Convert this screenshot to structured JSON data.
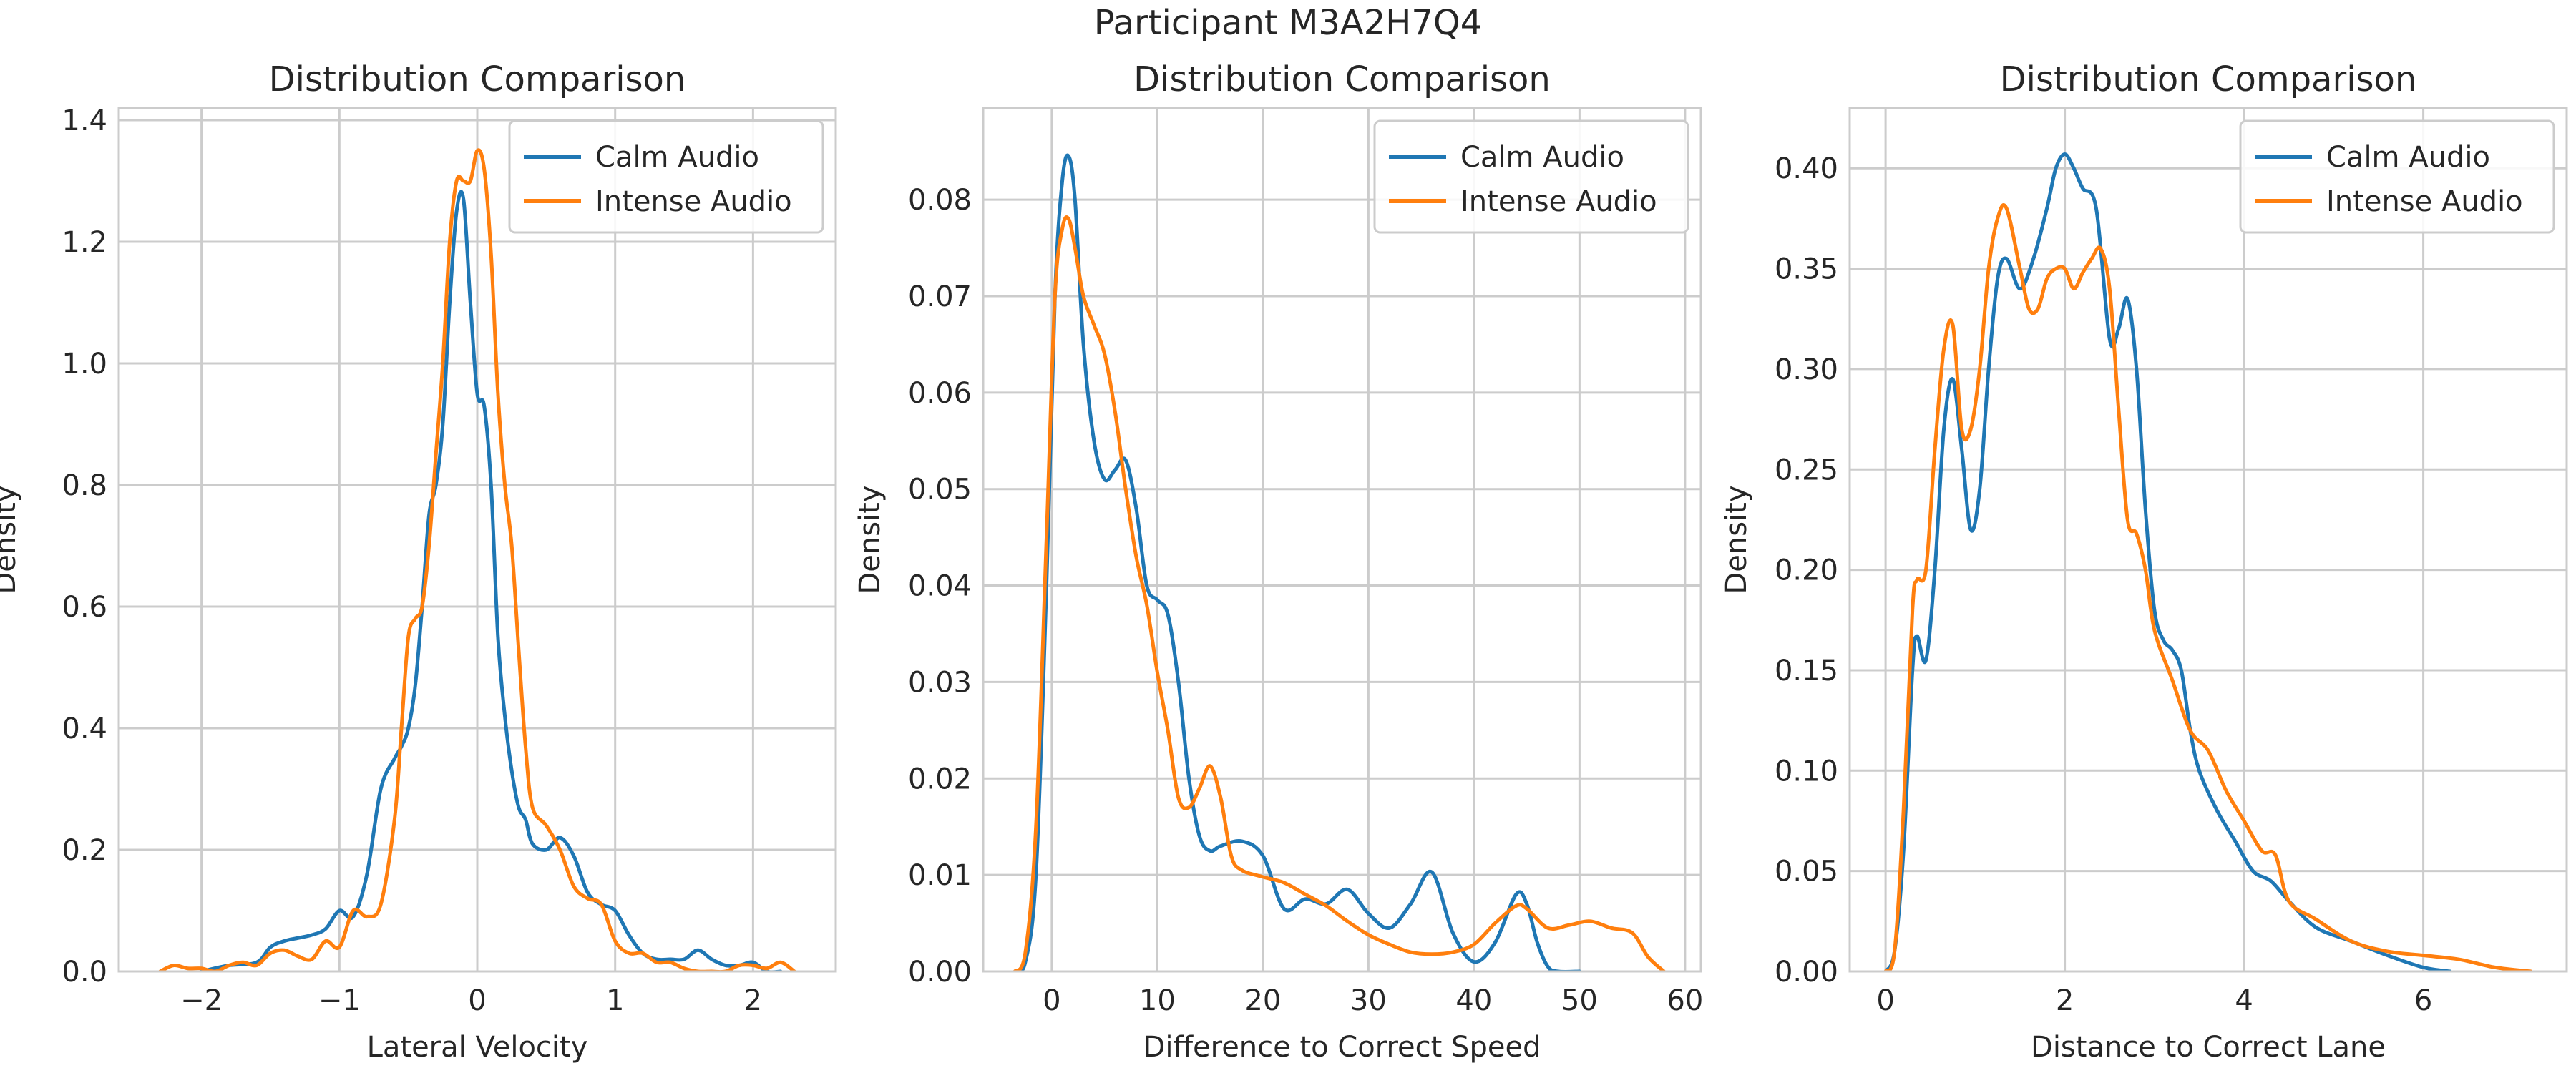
{
  "figure": {
    "suptitle": "Participant M3A2H7Q4"
  },
  "colors": {
    "calm": "#1f77b4",
    "intense": "#ff7f0e"
  },
  "chart_data": [
    {
      "type": "line",
      "title": "Distribution Comparison",
      "xlabel": "Lateral Velocity",
      "ylabel": "Density",
      "xlim": [
        -2.6,
        2.6
      ],
      "ylim": [
        0,
        1.42
      ],
      "xticks": [
        -2,
        -1,
        0,
        1,
        2
      ],
      "xtick_labels": [
        "−2",
        "−1",
        "0",
        "1",
        "2"
      ],
      "yticks": [
        0,
        0.2,
        0.4,
        0.6,
        0.8,
        1.0,
        1.2,
        1.4
      ],
      "ytick_labels": [
        "0.0",
        "0.2",
        "0.4",
        "0.6",
        "0.8",
        "1.0",
        "1.2",
        "1.4"
      ],
      "grid": true,
      "legend": "upper right",
      "series": [
        {
          "name": "Calm Audio",
          "color": "#1f77b4",
          "x": [
            -2.0,
            -1.8,
            -1.6,
            -1.5,
            -1.4,
            -1.3,
            -1.2,
            -1.1,
            -1.0,
            -0.9,
            -0.8,
            -0.7,
            -0.6,
            -0.55,
            -0.5,
            -0.45,
            -0.4,
            -0.35,
            -0.3,
            -0.25,
            -0.2,
            -0.15,
            -0.1,
            -0.05,
            0.0,
            0.05,
            0.1,
            0.15,
            0.2,
            0.25,
            0.3,
            0.35,
            0.4,
            0.5,
            0.6,
            0.7,
            0.8,
            0.9,
            1.0,
            1.1,
            1.2,
            1.3,
            1.4,
            1.5,
            1.6,
            1.7,
            1.8,
            1.9,
            2.0,
            2.1,
            2.2
          ],
          "y": [
            0.0,
            0.01,
            0.015,
            0.04,
            0.05,
            0.055,
            0.06,
            0.07,
            0.1,
            0.09,
            0.16,
            0.3,
            0.35,
            0.37,
            0.4,
            0.47,
            0.6,
            0.75,
            0.8,
            0.9,
            1.1,
            1.25,
            1.27,
            1.1,
            0.95,
            0.93,
            0.8,
            0.55,
            0.42,
            0.33,
            0.27,
            0.25,
            0.21,
            0.2,
            0.22,
            0.19,
            0.13,
            0.11,
            0.1,
            0.06,
            0.03,
            0.02,
            0.02,
            0.02,
            0.035,
            0.02,
            0.01,
            0.01,
            0.015,
            0.0,
            0.0
          ]
        },
        {
          "name": "Intense Audio",
          "color": "#ff7f0e",
          "x": [
            -2.3,
            -2.2,
            -2.1,
            -2.0,
            -1.9,
            -1.8,
            -1.7,
            -1.6,
            -1.5,
            -1.4,
            -1.3,
            -1.2,
            -1.1,
            -1.0,
            -0.9,
            -0.8,
            -0.7,
            -0.6,
            -0.55,
            -0.5,
            -0.45,
            -0.4,
            -0.35,
            -0.3,
            -0.25,
            -0.2,
            -0.15,
            -0.1,
            -0.05,
            0.0,
            0.05,
            0.1,
            0.15,
            0.2,
            0.25,
            0.3,
            0.35,
            0.4,
            0.5,
            0.6,
            0.7,
            0.8,
            0.9,
            1.0,
            1.1,
            1.2,
            1.3,
            1.4,
            1.5,
            1.6,
            1.7,
            1.8,
            1.9,
            2.0,
            2.1,
            2.2,
            2.3
          ],
          "y": [
            0.0,
            0.01,
            0.005,
            0.005,
            0.0,
            0.01,
            0.015,
            0.01,
            0.03,
            0.035,
            0.025,
            0.02,
            0.05,
            0.04,
            0.1,
            0.09,
            0.11,
            0.25,
            0.4,
            0.55,
            0.58,
            0.6,
            0.7,
            0.85,
            1.0,
            1.2,
            1.3,
            1.3,
            1.3,
            1.35,
            1.32,
            1.18,
            0.95,
            0.8,
            0.7,
            0.53,
            0.37,
            0.27,
            0.24,
            0.2,
            0.14,
            0.12,
            0.11,
            0.05,
            0.03,
            0.03,
            0.015,
            0.015,
            0.005,
            0.0,
            0.0,
            0.0,
            0.01,
            0.01,
            0.005,
            0.015,
            0.0
          ]
        }
      ]
    },
    {
      "type": "line",
      "title": "Distribution Comparison",
      "xlabel": "Difference to Correct Speed",
      "ylabel": "Density",
      "xlim": [
        -6.5,
        61.5
      ],
      "ylim": [
        0,
        0.0895
      ],
      "xticks": [
        0,
        10,
        20,
        30,
        40,
        50,
        60
      ],
      "xtick_labels": [
        "0",
        "10",
        "20",
        "30",
        "40",
        "50",
        "60"
      ],
      "yticks": [
        0,
        0.01,
        0.02,
        0.03,
        0.04,
        0.05,
        0.06,
        0.07,
        0.08
      ],
      "ytick_labels": [
        "0.00",
        "0.01",
        "0.02",
        "0.03",
        "0.04",
        "0.05",
        "0.06",
        "0.07",
        "0.08"
      ],
      "grid": true,
      "legend": "upper right",
      "series": [
        {
          "name": "Calm Audio",
          "color": "#1f77b4",
          "x": [
            -3.5,
            -2.5,
            -1.5,
            -0.5,
            0.3,
            1.0,
            1.6,
            2.2,
            3.0,
            4.0,
            5.0,
            6.0,
            7.0,
            8.0,
            9.0,
            10.0,
            11.0,
            12.0,
            13.0,
            14.0,
            15.0,
            16.0,
            18.0,
            20.0,
            22.0,
            24.0,
            26.0,
            28.0,
            30.0,
            32.0,
            34.0,
            36.0,
            38.0,
            40.0,
            42.0,
            44.0,
            45.0,
            46.0,
            47.0,
            48.0,
            50.0
          ],
          "y": [
            0.0,
            0.001,
            0.01,
            0.04,
            0.07,
            0.082,
            0.0845,
            0.08,
            0.065,
            0.055,
            0.051,
            0.052,
            0.053,
            0.048,
            0.04,
            0.0385,
            0.037,
            0.03,
            0.02,
            0.014,
            0.0125,
            0.013,
            0.0135,
            0.012,
            0.0065,
            0.0075,
            0.007,
            0.0085,
            0.006,
            0.0045,
            0.007,
            0.0103,
            0.004,
            0.001,
            0.003,
            0.008,
            0.007,
            0.003,
            0.0005,
            0.0,
            0.0
          ]
        },
        {
          "name": "Intense Audio",
          "color": "#ff7f0e",
          "x": [
            -3.5,
            -2.5,
            -1.5,
            -0.5,
            0.3,
            1.0,
            1.6,
            2.2,
            3.0,
            4.0,
            5.0,
            6.0,
            7.0,
            8.0,
            9.0,
            10.0,
            11.0,
            12.0,
            13.0,
            14.0,
            15.0,
            16.0,
            17.0,
            18.0,
            20.0,
            22.0,
            24.0,
            26.0,
            28.0,
            30.0,
            32.0,
            34.0,
            36.0,
            38.0,
            40.0,
            42.0,
            44.0,
            45.0,
            47.0,
            49.0,
            51.0,
            53.0,
            55.0,
            56.5,
            58.0
          ],
          "y": [
            0.0,
            0.002,
            0.015,
            0.045,
            0.07,
            0.077,
            0.078,
            0.075,
            0.07,
            0.067,
            0.064,
            0.058,
            0.05,
            0.043,
            0.038,
            0.031,
            0.025,
            0.018,
            0.017,
            0.019,
            0.0213,
            0.018,
            0.012,
            0.0105,
            0.0098,
            0.0092,
            0.008,
            0.0068,
            0.0052,
            0.0038,
            0.0028,
            0.002,
            0.0018,
            0.002,
            0.0028,
            0.005,
            0.0068,
            0.0065,
            0.0045,
            0.0048,
            0.0052,
            0.0045,
            0.004,
            0.0015,
            0.0
          ]
        }
      ]
    },
    {
      "type": "line",
      "title": "Distribution Comparison",
      "xlabel": "Distance to Correct Lane",
      "ylabel": "Density",
      "xlim": [
        -0.4,
        7.6
      ],
      "ylim": [
        0,
        0.43
      ],
      "xticks": [
        0,
        2,
        4,
        6
      ],
      "xtick_labels": [
        "0",
        "2",
        "4",
        "6"
      ],
      "yticks": [
        0,
        0.05,
        0.1,
        0.15,
        0.2,
        0.25,
        0.3,
        0.35,
        0.4
      ],
      "ytick_labels": [
        "0.00",
        "0.05",
        "0.10",
        "0.15",
        "0.20",
        "0.25",
        "0.30",
        "0.35",
        "0.40"
      ],
      "grid": true,
      "legend": "upper right",
      "series": [
        {
          "name": "Calm Audio",
          "color": "#1f77b4",
          "x": [
            0.0,
            0.1,
            0.2,
            0.3,
            0.35,
            0.45,
            0.55,
            0.65,
            0.75,
            0.85,
            0.95,
            1.05,
            1.15,
            1.25,
            1.35,
            1.5,
            1.65,
            1.8,
            1.9,
            2.0,
            2.1,
            2.2,
            2.35,
            2.5,
            2.6,
            2.7,
            2.8,
            2.9,
            3.0,
            3.1,
            3.2,
            3.3,
            3.4,
            3.5,
            3.7,
            3.9,
            4.1,
            4.3,
            4.5,
            4.8,
            5.2,
            5.6,
            6.0,
            6.3
          ],
          "y": [
            0.0,
            0.01,
            0.06,
            0.15,
            0.167,
            0.155,
            0.2,
            0.27,
            0.295,
            0.26,
            0.22,
            0.24,
            0.3,
            0.345,
            0.355,
            0.34,
            0.355,
            0.38,
            0.4,
            0.407,
            0.4,
            0.39,
            0.38,
            0.315,
            0.32,
            0.335,
            0.3,
            0.23,
            0.18,
            0.165,
            0.16,
            0.15,
            0.12,
            0.1,
            0.08,
            0.065,
            0.05,
            0.045,
            0.035,
            0.022,
            0.015,
            0.008,
            0.002,
            0.0
          ]
        },
        {
          "name": "Intense Audio",
          "color": "#ff7f0e",
          "x": [
            0.0,
            0.1,
            0.2,
            0.3,
            0.35,
            0.45,
            0.55,
            0.65,
            0.75,
            0.85,
            0.95,
            1.05,
            1.15,
            1.25,
            1.35,
            1.5,
            1.6,
            1.7,
            1.8,
            1.9,
            2.0,
            2.1,
            2.2,
            2.3,
            2.4,
            2.5,
            2.6,
            2.7,
            2.8,
            2.9,
            3.0,
            3.2,
            3.4,
            3.6,
            3.8,
            4.0,
            4.2,
            4.35,
            4.5,
            4.8,
            5.2,
            5.6,
            6.0,
            6.4,
            6.8,
            7.2
          ],
          "y": [
            0.0,
            0.01,
            0.08,
            0.18,
            0.195,
            0.2,
            0.26,
            0.31,
            0.322,
            0.27,
            0.27,
            0.3,
            0.35,
            0.375,
            0.38,
            0.35,
            0.33,
            0.33,
            0.345,
            0.35,
            0.35,
            0.34,
            0.348,
            0.355,
            0.36,
            0.34,
            0.28,
            0.225,
            0.218,
            0.2,
            0.17,
            0.145,
            0.12,
            0.11,
            0.09,
            0.075,
            0.06,
            0.058,
            0.035,
            0.026,
            0.015,
            0.01,
            0.008,
            0.006,
            0.002,
            0.0
          ]
        }
      ]
    }
  ]
}
